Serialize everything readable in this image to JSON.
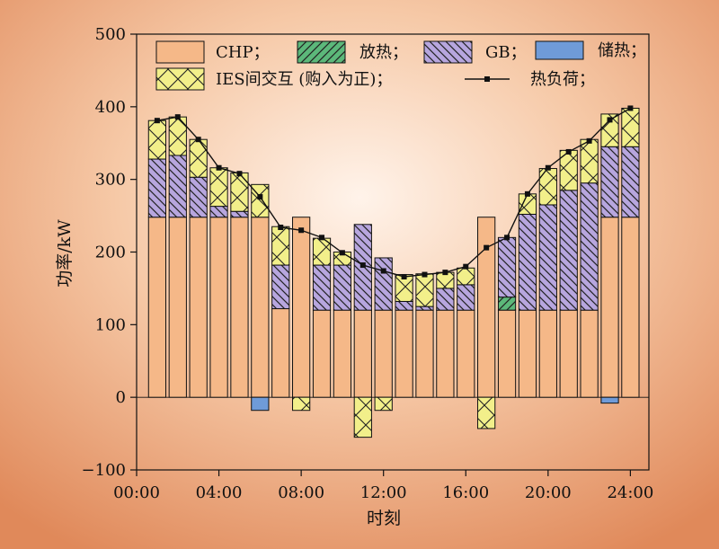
{
  "chart_data": {
    "type": "bar",
    "stacked": true,
    "xlabel": "时刻",
    "ylabel": "功率/kW",
    "ylim": [
      -100,
      500
    ],
    "yticks": [
      -100,
      0,
      100,
      200,
      300,
      400,
      500
    ],
    "xlim": [
      0,
      24.9
    ],
    "xticks": [
      0,
      4,
      8,
      12,
      16,
      20,
      24
    ],
    "xtick_labels": [
      "00:00",
      "04:00",
      "08:00",
      "12:00",
      "16:00",
      "20:00",
      "24:00"
    ],
    "grid": false,
    "legend_position": "top",
    "hours": [
      1,
      2,
      3,
      4,
      5,
      6,
      7,
      8,
      9,
      10,
      11,
      12,
      13,
      14,
      15,
      16,
      17,
      18,
      19,
      20,
      21,
      22,
      23,
      24
    ],
    "series": [
      {
        "name": "CHP；",
        "key": "chp",
        "color": "#F5B888",
        "pattern": "none",
        "values": [
          248,
          248,
          248,
          248,
          248,
          248,
          122,
          248,
          120,
          120,
          120,
          120,
          120,
          120,
          120,
          120,
          248,
          120,
          120,
          120,
          120,
          120,
          248,
          248
        ]
      },
      {
        "name": "放热；",
        "key": "release",
        "color": "#5CB87A",
        "pattern": "diag-right",
        "values": [
          0,
          0,
          0,
          0,
          0,
          0,
          0,
          0,
          0,
          0,
          0,
          0,
          0,
          0,
          0,
          0,
          0,
          18,
          0,
          0,
          0,
          0,
          0,
          0
        ]
      },
      {
        "name": "GB；",
        "key": "gb",
        "color": "#B7A6DE",
        "pattern": "diag-left",
        "values": [
          80,
          85,
          55,
          15,
          8,
          0,
          60,
          0,
          62,
          62,
          118,
          72,
          12,
          5,
          30,
          35,
          0,
          82,
          132,
          145,
          165,
          175,
          97,
          97
        ]
      },
      {
        "name": "储热；",
        "key": "storage",
        "color": "#6F9BD8",
        "pattern": "none",
        "values": [
          0,
          0,
          0,
          0,
          0,
          -18,
          0,
          0,
          0,
          0,
          0,
          0,
          0,
          0,
          0,
          0,
          0,
          0,
          0,
          0,
          0,
          0,
          -8,
          0
        ]
      },
      {
        "name": "IES间交互 (购入为正)；",
        "key": "ies",
        "color": "#F2EF8A",
        "pattern": "cross",
        "values": [
          53,
          53,
          52,
          53,
          53,
          45,
          53,
          -18,
          37,
          18,
          -55,
          -18,
          37,
          45,
          22,
          23,
          -43,
          0,
          28,
          50,
          55,
          60,
          45,
          53
        ]
      },
      {
        "name": "热负荷；",
        "key": "load",
        "type": "line",
        "color": "#111111",
        "values": [
          381,
          386,
          355,
          316,
          308,
          276,
          234,
          230,
          220,
          199,
          182,
          174,
          166,
          169,
          172,
          180,
          206,
          220,
          280,
          316,
          338,
          353,
          382,
          398
        ]
      }
    ]
  }
}
